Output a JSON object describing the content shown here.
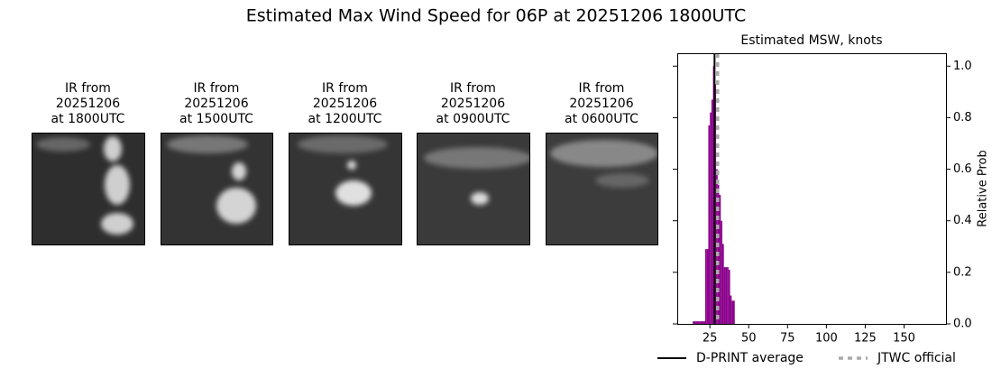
{
  "title": "Estimated Max Wind Speed for 06P at 20251206 1800UTC",
  "panels": [
    {
      "title_lines": [
        "IR from",
        "20251206",
        "at 1800UTC"
      ]
    },
    {
      "title_lines": [
        "IR from",
        "20251206",
        "at 1500UTC"
      ]
    },
    {
      "title_lines": [
        "IR from",
        "20251206",
        "at 1200UTC"
      ]
    },
    {
      "title_lines": [
        "IR from",
        "20251206",
        "at 0900UTC"
      ]
    },
    {
      "title_lines": [
        "IR from",
        "20251206",
        "at 0600UTC"
      ]
    }
  ],
  "chart_data": {
    "type": "histogram",
    "title": "Estimated MSW, knots",
    "y_label": "Relative Prob",
    "color": "#8b008b",
    "bins": [
      14,
      15,
      16,
      17,
      18,
      19,
      20,
      21,
      22,
      23,
      24,
      25,
      26,
      27,
      28,
      29,
      30,
      31,
      32,
      33,
      34,
      35,
      36,
      37,
      38,
      39,
      40,
      41
    ],
    "values": [
      0.01,
      0.01,
      0.01,
      0.01,
      0.01,
      0.01,
      0.01,
      0.01,
      0.29,
      0.29,
      0.77,
      0.82,
      0.87,
      1.0,
      0.93,
      0.6,
      0.54,
      0.5,
      0.4,
      0.31,
      0.22,
      0.22,
      0.22,
      0.21,
      0.11,
      0.09,
      0.09
    ],
    "xlim": [
      4,
      177
    ],
    "xticks": [
      25,
      50,
      75,
      100,
      125,
      150
    ],
    "ylim": [
      0,
      1.05
    ],
    "yticks": [
      {
        "value": 0,
        "label": "0.0"
      },
      0.2,
      0.4,
      0.6,
      0.8,
      {
        "value": 1,
        "label": "1.0"
      }
    ],
    "markers": [
      {
        "name": "D-PRINT average",
        "x": 28,
        "color": "#000000",
        "linestyle": "solid"
      },
      {
        "name": "JTWC official",
        "x": 30,
        "color": "#aaaaaa",
        "linestyle": "dotted"
      }
    ]
  }
}
